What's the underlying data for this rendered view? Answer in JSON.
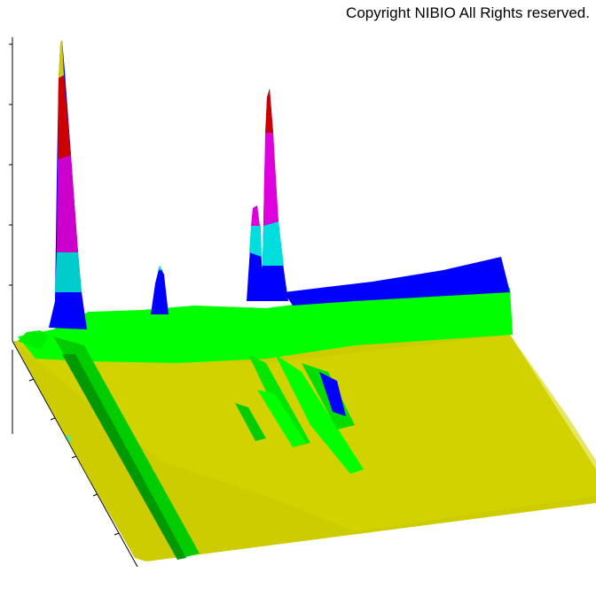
{
  "chart_data": {
    "type": "surface",
    "annotation": "Copyright NIBIO All Rights reserved."
  }
}
